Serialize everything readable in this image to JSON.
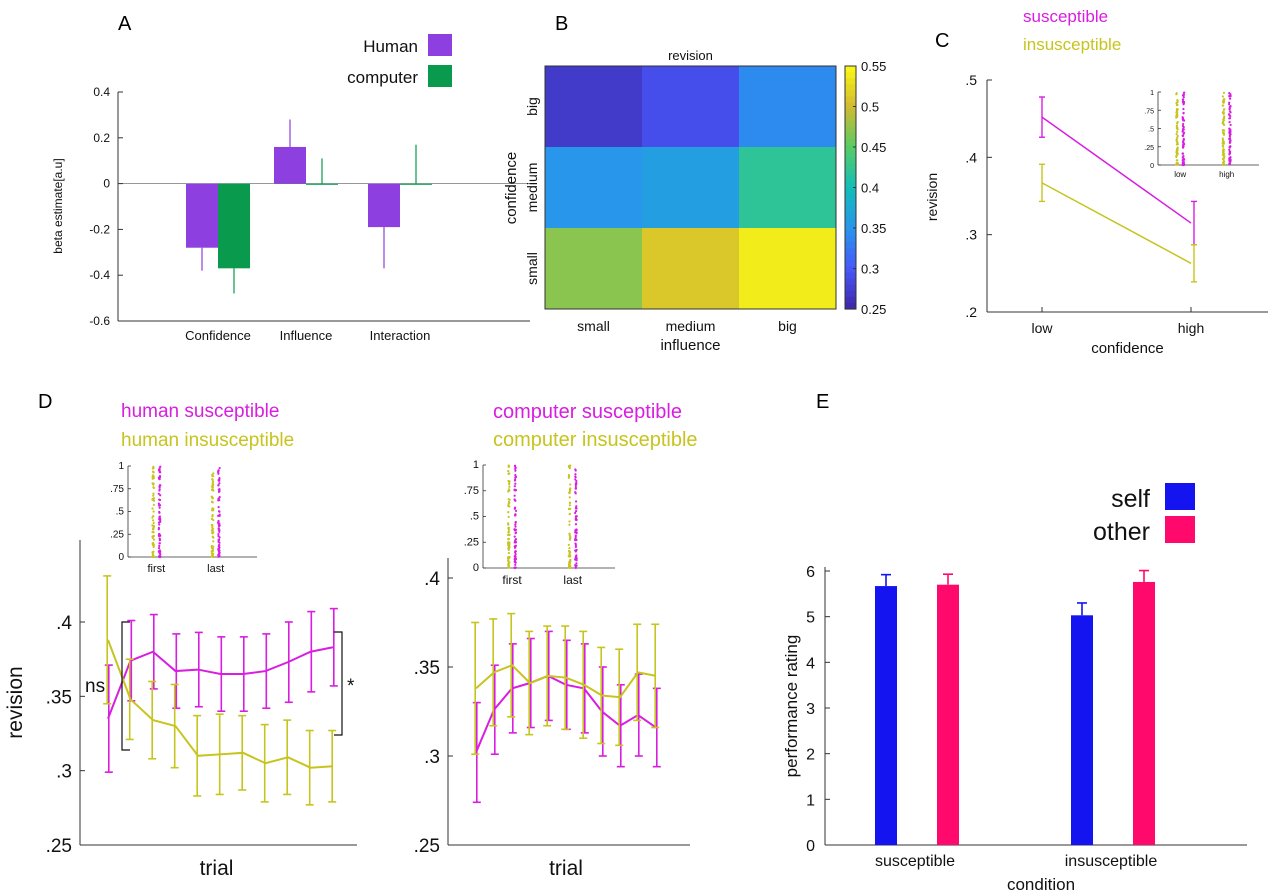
{
  "colors": {
    "human": "#8e3fe0",
    "computer": "#0a9a4e",
    "susceptible": "#d81ee0",
    "insusceptible": "#c7c41f",
    "self": "#1414f0",
    "other": "#ff0a6c"
  },
  "panels": {
    "A": "A",
    "B": "B",
    "C": "C",
    "D": "D",
    "E": "E"
  },
  "chart_data": [
    {
      "id": "A",
      "type": "bar",
      "ylabel": "beta estimate[a.u]",
      "ylim": [
        -0.6,
        0.4
      ],
      "yticks": [
        "0.4",
        "0.2",
        "0",
        "-0.2",
        "-0.4",
        "-0.6"
      ],
      "categories": [
        "Confidence",
        "Influence",
        "Interaction"
      ],
      "legend": [
        "Human",
        "computer"
      ],
      "series": [
        {
          "name": "Human",
          "values": [
            -0.28,
            0.16,
            -0.19
          ],
          "errors": [
            0.1,
            0.12,
            0.18
          ]
        },
        {
          "name": "computer",
          "values": [
            -0.37,
            0.0,
            0.0
          ],
          "errors": [
            0.11,
            0.11,
            0.17
          ]
        }
      ]
    },
    {
      "id": "B",
      "type": "heatmap",
      "title": "revision",
      "xlabel": "influence",
      "ylabel": "confidence",
      "xcategories": [
        "small",
        "medium",
        "big"
      ],
      "ycategories": [
        "big",
        "medium",
        "small"
      ],
      "values": [
        [
          0.27,
          0.29,
          0.34
        ],
        [
          0.35,
          0.36,
          0.42
        ],
        [
          0.47,
          0.51,
          0.54
        ]
      ],
      "colorbar_range": [
        0.25,
        0.55
      ],
      "colorbar_ticks": [
        "0.55",
        "0.5",
        "0.45",
        "0.4",
        "0.35",
        "0.3",
        "0.25"
      ]
    },
    {
      "id": "C",
      "type": "line",
      "xlabel": "confidence",
      "ylabel": "revision",
      "categories": [
        "low",
        "high"
      ],
      "ylim": [
        0.2,
        0.5
      ],
      "yticks": [
        ".5",
        ".4",
        ".3",
        ".2"
      ],
      "legend": [
        "susceptible",
        "insusceptible"
      ],
      "series": [
        {
          "name": "susceptible",
          "values": [
            0.452,
            0.315
          ],
          "errors": [
            0.026,
            0.028
          ]
        },
        {
          "name": "insusceptible",
          "values": [
            0.367,
            0.263
          ],
          "errors": [
            0.024,
            0.024
          ]
        }
      ],
      "inset": {
        "categories": [
          "low",
          "high"
        ],
        "yticks": [
          "1",
          ".75",
          ".5",
          ".25",
          "0"
        ]
      }
    },
    {
      "id": "D-human",
      "type": "line",
      "xlabel": "trial",
      "ylabel": "revision",
      "ylim": [
        0.25,
        0.4
      ],
      "yticks": [
        ".4",
        ".35",
        ".3",
        ".25"
      ],
      "legend": [
        "human susceptible",
        "human insusceptible"
      ],
      "annotations": [
        "ns",
        "*"
      ],
      "series": [
        {
          "name": "human susceptible",
          "values": [
            0.335,
            0.374,
            0.38,
            0.367,
            0.368,
            0.365,
            0.365,
            0.367,
            0.373,
            0.38,
            0.383
          ],
          "errors": [
            0.036,
            0.027,
            0.025,
            0.025,
            0.025,
            0.025,
            0.025,
            0.025,
            0.027,
            0.027,
            0.026
          ]
        },
        {
          "name": "human insusceptible",
          "values": [
            0.388,
            0.348,
            0.334,
            0.33,
            0.31,
            0.311,
            0.312,
            0.305,
            0.309,
            0.302,
            0.303
          ],
          "errors": [
            0.043,
            0.027,
            0.026,
            0.028,
            0.027,
            0.027,
            0.025,
            0.026,
            0.025,
            0.025,
            0.024
          ]
        }
      ],
      "inset": {
        "categories": [
          "first",
          "last"
        ],
        "yticks": [
          "1",
          ".75",
          ".5",
          ".25",
          "0"
        ]
      }
    },
    {
      "id": "D-computer",
      "type": "line",
      "xlabel": "trial",
      "ylim": [
        0.25,
        0.4
      ],
      "yticks": [
        ".4",
        ".35",
        ".3",
        ".25"
      ],
      "legend": [
        "computer susceptible",
        "computer insusceptible"
      ],
      "series": [
        {
          "name": "computer susceptible",
          "values": [
            0.302,
            0.326,
            0.338,
            0.341,
            0.345,
            0.34,
            0.338,
            0.325,
            0.317,
            0.323,
            0.316
          ],
          "errors": [
            0.028,
            0.025,
            0.025,
            0.025,
            0.025,
            0.025,
            0.025,
            0.025,
            0.023,
            0.023,
            0.022
          ]
        },
        {
          "name": "computer insusceptible",
          "values": [
            0.338,
            0.347,
            0.351,
            0.341,
            0.345,
            0.344,
            0.34,
            0.334,
            0.333,
            0.347,
            0.345
          ],
          "errors": [
            0.037,
            0.03,
            0.029,
            0.029,
            0.028,
            0.029,
            0.03,
            0.027,
            0.027,
            0.027,
            0.029
          ]
        }
      ],
      "inset": {
        "categories": [
          "first",
          "last"
        ],
        "yticks": [
          "1",
          ".75",
          ".5",
          ".25",
          "0"
        ]
      }
    },
    {
      "id": "E",
      "type": "bar",
      "xlabel": "condition",
      "ylabel": "performance rating",
      "ylim": [
        0,
        6
      ],
      "yticks": [
        "0",
        "1",
        "2",
        "3",
        "4",
        "5",
        "6"
      ],
      "categories": [
        "susceptible",
        "insusceptible"
      ],
      "legend": [
        "self",
        "other"
      ],
      "series": [
        {
          "name": "self",
          "values": [
            5.67,
            5.03
          ],
          "errors": [
            0.25,
            0.27
          ]
        },
        {
          "name": "other",
          "values": [
            5.7,
            5.76
          ],
          "errors": [
            0.23,
            0.25
          ]
        }
      ]
    }
  ]
}
